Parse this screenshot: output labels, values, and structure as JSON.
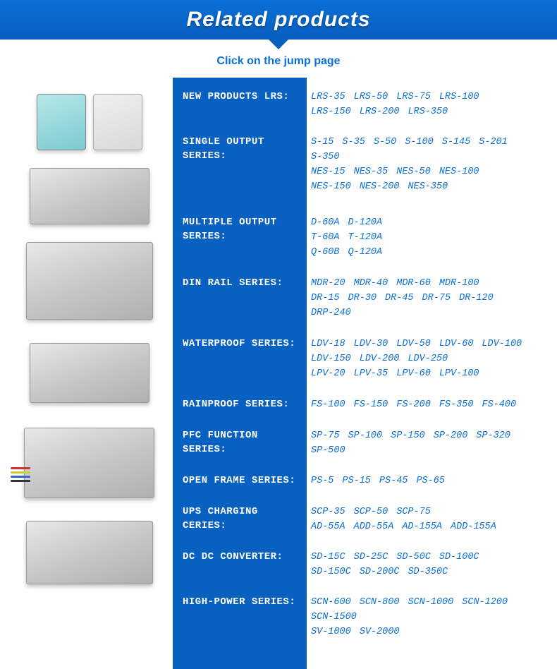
{
  "banner": {
    "title": "Related products"
  },
  "subtitle": "Click on the jump page",
  "colors": {
    "banner_bg_top": "#0a6fd6",
    "banner_bg_bottom": "#0860c0",
    "cat_bg": "#0860c0",
    "link_color": "#0a6fd6",
    "cat_text": "#ffffff"
  },
  "left_images": [
    {
      "h": 110,
      "kind": "dual"
    },
    {
      "h": 100,
      "kind": "psu",
      "w": 170,
      "ph": 80
    },
    {
      "h": 140,
      "kind": "psu",
      "w": 180,
      "ph": 110
    },
    {
      "h": 120,
      "kind": "psu",
      "w": 170,
      "ph": 85
    },
    {
      "h": 135,
      "kind": "psu-wires",
      "w": 185,
      "ph": 100
    },
    {
      "h": 120,
      "kind": "psu",
      "w": 180,
      "ph": 90
    }
  ],
  "categories": [
    {
      "label": "NEW PRODUCTS LRS:",
      "height": 50,
      "links": [
        [
          "LRS-35",
          "LRS-50",
          "LRS-75",
          "LRS-100"
        ],
        [
          "LRS-150",
          "LRS-200",
          "LRS-350"
        ]
      ]
    },
    {
      "label": "SINGLE OUTPUT SERIES:",
      "height": 100,
      "links": [
        [
          "S-15",
          "S-35",
          "S-50",
          "S-100",
          "S-145",
          "S-201"
        ],
        [
          "S-350"
        ],
        [
          "NES-15",
          "NES-35",
          "NES-50",
          "NES-100"
        ],
        [
          "NES-150",
          "NES-200",
          "NES-350"
        ]
      ]
    },
    {
      "label": "MULTIPLE OUTPUT SERIES:",
      "height": 72,
      "links": [
        [
          "D-60A",
          "D-120A"
        ],
        [
          "T-60A",
          "T-120A"
        ],
        [
          "Q-60B",
          "Q-120A"
        ]
      ]
    },
    {
      "label": "DIN RAIL SERIES:",
      "height": 72,
      "links": [
        [
          "MDR-20",
          "MDR-40",
          "MDR-60",
          "MDR-100"
        ],
        [
          "DR-15",
          "DR-30",
          "DR-45",
          "DR-75",
          "DR-120"
        ],
        [
          "DRP-240"
        ]
      ]
    },
    {
      "label": "WATERPROOF SERIES:",
      "height": 72,
      "links": [
        [
          "LDV-18",
          "LDV-30",
          "LDV-50",
          "LDV-60",
          "LDV-100"
        ],
        [
          "LDV-150",
          "LDV-200",
          "LDV-250"
        ],
        [
          "LPV-20",
          "LPV-35",
          "LPV-60",
          "LPV-100"
        ]
      ]
    },
    {
      "label": "RAINPROOF SERIES:",
      "height": 30,
      "links": [
        [
          "FS-100",
          "FS-150",
          "FS-200",
          "FS-350",
          "FS-400"
        ]
      ]
    },
    {
      "label": "PFC FUNCTION SERIES:",
      "height": 50,
      "links": [
        [
          "SP-75",
          "SP-100",
          "SP-150",
          "SP-200",
          "SP-320"
        ],
        [
          "SP-500"
        ]
      ]
    },
    {
      "label": "OPEN FRAME SERIES:",
      "height": 30,
      "links": [
        [
          "PS-5",
          "PS-15",
          "PS-45",
          "PS-65"
        ]
      ]
    },
    {
      "label": "UPS CHARGING CERIES:",
      "height": 50,
      "links": [
        [
          "SCP-35",
          "SCP-50",
          "SCP-75"
        ],
        [
          "AD-55A",
          "ADD-55A",
          "AD-155A",
          "ADD-155A"
        ]
      ]
    },
    {
      "label": "DC DC CONVERTER:",
      "height": 50,
      "links": [
        [
          "SD-15C",
          "SD-25C",
          "SD-50C",
          "SD-100C"
        ],
        [
          "SD-150C",
          "SD-200C",
          "SD-350C"
        ]
      ]
    },
    {
      "label": "HIGH-POWER SERIES:",
      "height": 72,
      "links": [
        [
          "SCN-600",
          "SCN-800",
          "SCN-1000",
          "SCN-1200"
        ],
        [
          "SCN-1500"
        ],
        [
          "SV-1000",
          "SV-2000"
        ]
      ]
    }
  ]
}
